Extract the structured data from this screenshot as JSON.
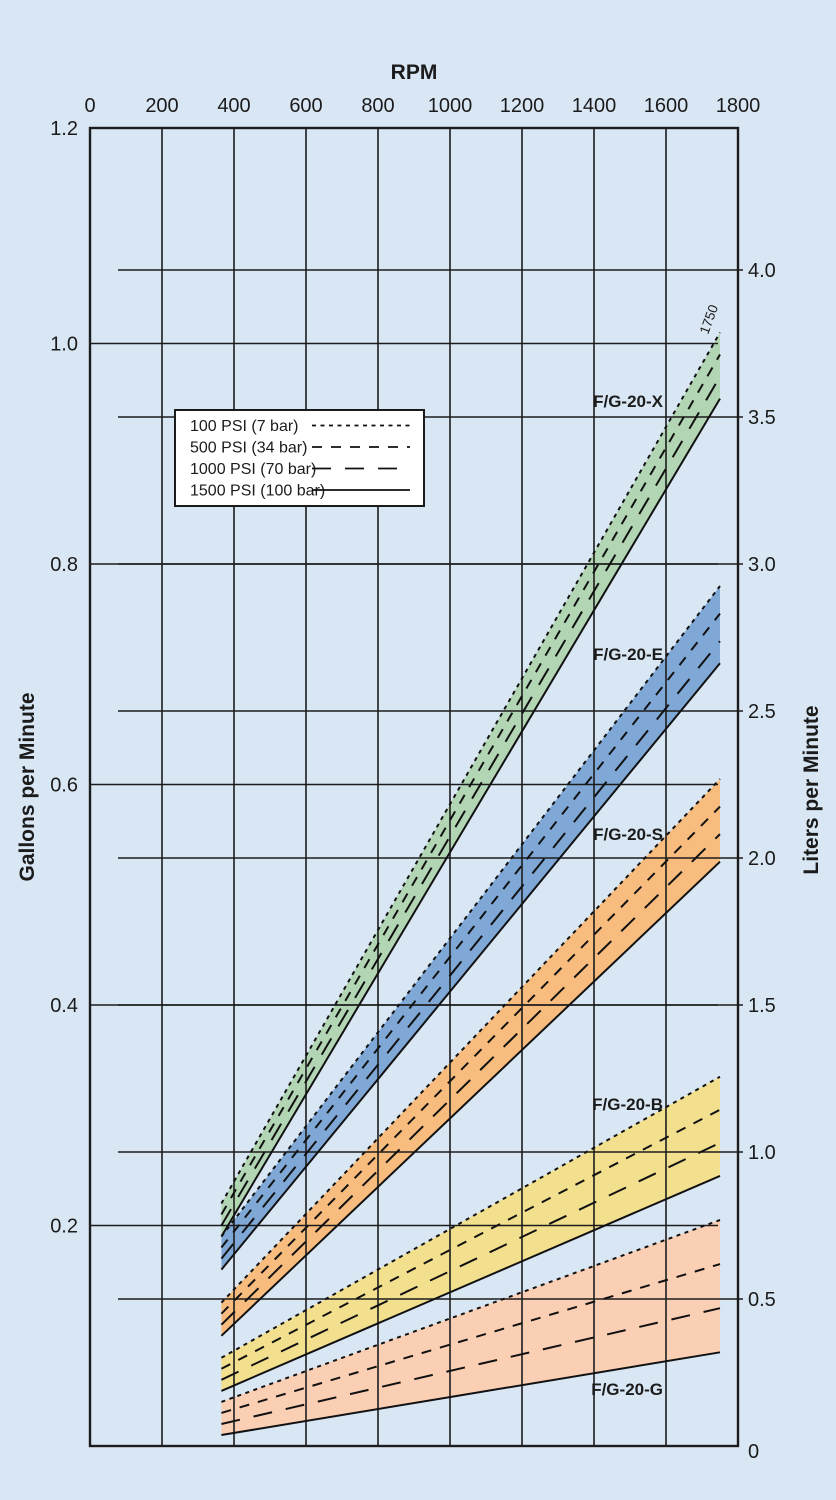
{
  "page": {
    "background": "#d9e7f5",
    "text_color": "#1b1b1b",
    "grid_color": "#1c1c1c",
    "legend_background": "#ffffff"
  },
  "chart_data": {
    "type": "area",
    "title": "RPM",
    "x_axis": {
      "title": "RPM",
      "min": 0,
      "max": 1800,
      "ticks": [
        0,
        200,
        400,
        600,
        800,
        1000,
        1200,
        1400,
        1600,
        1800
      ]
    },
    "y_axis_left": {
      "title": "Gallons per Minute",
      "min": 0,
      "max": 1.2,
      "ticks": [
        0.2,
        0.4,
        0.6,
        0.8,
        1.0,
        1.2
      ]
    },
    "y_axis_right": {
      "title": "Liters per Minute",
      "min": 0,
      "max": 4.0,
      "ticks": [
        0,
        0.5,
        1.0,
        1.5,
        2.0,
        2.5,
        3.0,
        3.5,
        4.0
      ]
    },
    "legend": {
      "position": "upper-left-inside",
      "entries": [
        {
          "label": "100 PSI (7 bar)",
          "style": "dot"
        },
        {
          "label": "500 PSI (34 bar)",
          "style": "dash"
        },
        {
          "label": "1000 PSI (70 bar)",
          "style": "longdash"
        },
        {
          "label": "1500 PSI (100 bar)",
          "style": "solid"
        }
      ]
    },
    "annotation": {
      "label": "1750",
      "rpm": 1750
    },
    "bands": [
      {
        "model": "F/G-20-X",
        "color": "#b2d6b4",
        "rpm_start": 365,
        "rpm_end": 1750,
        "lines": [
          {
            "pressure": "100 PSI (7 bar)",
            "style": "dot",
            "gpm_start": 0.22,
            "gpm_end": 1.01
          },
          {
            "pressure": "500 PSI (34 bar)",
            "style": "dash",
            "gpm_start": 0.21,
            "gpm_end": 0.99
          },
          {
            "pressure": "1000 PSI (70 bar)",
            "style": "longdash",
            "gpm_start": 0.2,
            "gpm_end": 0.97
          },
          {
            "pressure": "1500 PSI (100 bar)",
            "style": "solid",
            "gpm_start": 0.19,
            "gpm_end": 0.95
          }
        ]
      },
      {
        "model": "F/G-20-E",
        "color": "#7fa8d7",
        "rpm_start": 365,
        "rpm_end": 1750,
        "lines": [
          {
            "pressure": "100 PSI (7 bar)",
            "style": "dot",
            "gpm_start": 0.19,
            "gpm_end": 0.78
          },
          {
            "pressure": "500 PSI (34 bar)",
            "style": "dash",
            "gpm_start": 0.18,
            "gpm_end": 0.755
          },
          {
            "pressure": "1000 PSI (70 bar)",
            "style": "longdash",
            "gpm_start": 0.17,
            "gpm_end": 0.73
          },
          {
            "pressure": "1500 PSI (100 bar)",
            "style": "solid",
            "gpm_start": 0.16,
            "gpm_end": 0.71
          }
        ]
      },
      {
        "model": "F/G-20-S",
        "color": "#f8bd7e",
        "rpm_start": 365,
        "rpm_end": 1750,
        "lines": [
          {
            "pressure": "100 PSI (7 bar)",
            "style": "dot",
            "gpm_start": 0.13,
            "gpm_end": 0.605
          },
          {
            "pressure": "500 PSI (34 bar)",
            "style": "dash",
            "gpm_start": 0.12,
            "gpm_end": 0.58
          },
          {
            "pressure": "1000 PSI (70 bar)",
            "style": "longdash",
            "gpm_start": 0.11,
            "gpm_end": 0.555
          },
          {
            "pressure": "1500 PSI (100 bar)",
            "style": "solid",
            "gpm_start": 0.1,
            "gpm_end": 0.53
          }
        ]
      },
      {
        "model": "F/G-20-B",
        "color": "#f3e08f",
        "rpm_start": 365,
        "rpm_end": 1750,
        "lines": [
          {
            "pressure": "100 PSI (7 bar)",
            "style": "dot",
            "gpm_start": 0.08,
            "gpm_end": 0.335
          },
          {
            "pressure": "500 PSI (34 bar)",
            "style": "dash",
            "gpm_start": 0.07,
            "gpm_end": 0.305
          },
          {
            "pressure": "1000 PSI (70 bar)",
            "style": "longdash",
            "gpm_start": 0.06,
            "gpm_end": 0.275
          },
          {
            "pressure": "1500 PSI (100 bar)",
            "style": "solid",
            "gpm_start": 0.05,
            "gpm_end": 0.245
          }
        ]
      },
      {
        "model": "F/G-20-G",
        "color": "#fbcfb4",
        "rpm_start": 365,
        "rpm_end": 1750,
        "lines": [
          {
            "pressure": "100 PSI (7 bar)",
            "style": "dot",
            "gpm_start": 0.04,
            "gpm_end": 0.205
          },
          {
            "pressure": "500 PSI (34 bar)",
            "style": "dash",
            "gpm_start": 0.03,
            "gpm_end": 0.165
          },
          {
            "pressure": "1000 PSI (70 bar)",
            "style": "longdash",
            "gpm_start": 0.02,
            "gpm_end": 0.125
          },
          {
            "pressure": "1500 PSI (100 bar)",
            "style": "solid",
            "gpm_start": 0.01,
            "gpm_end": 0.085
          }
        ]
      }
    ]
  }
}
